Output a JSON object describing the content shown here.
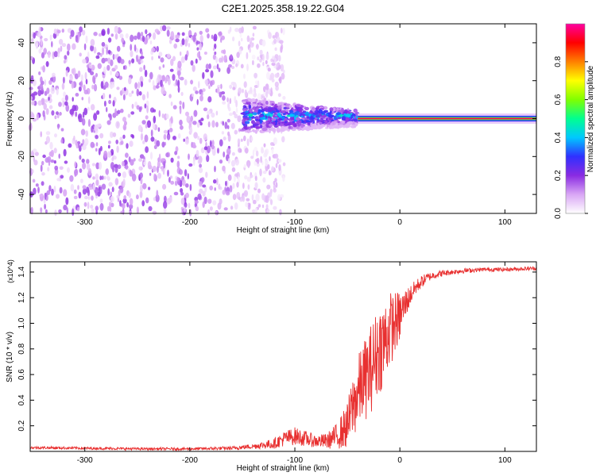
{
  "title": "C2E1.2025.358.19.22.G04",
  "chart_data": [
    {
      "type": "heatmap",
      "xlabel": "Height of straight line (km)",
      "ylabel": "Frequency (Hz)",
      "xlim": [
        -352,
        130
      ],
      "ylim": [
        -50,
        50
      ],
      "xticks": [
        -300,
        -200,
        -100,
        0,
        100
      ],
      "yticks": [
        -40,
        -20,
        0,
        20,
        40
      ],
      "colorbar": {
        "label": "Normalized spectral amplitude",
        "range": [
          0,
          1
        ],
        "ticks": [
          0.0,
          0.2,
          0.4,
          0.6,
          0.8
        ],
        "colors": [
          "#ffffff",
          "#d9a6f5",
          "#8a2be2",
          "#3030ff",
          "#00c8ff",
          "#00ff90",
          "#80ff00",
          "#ffff00",
          "#ff8000",
          "#ff0000",
          "#ff00a0"
        ]
      },
      "regions": [
        {
          "x_range": [
            -352,
            -110
          ],
          "freq_range": [
            -50,
            48
          ],
          "amplitude": 0.15,
          "note": "noise"
        },
        {
          "x_range": [
            -150,
            -40
          ],
          "freq_center": 1.5,
          "freq_halfwidth": 9,
          "amplitude": 0.35
        },
        {
          "x_range": [
            -40,
            130
          ],
          "freq_center": 0,
          "freq_halfwidth": 1.5,
          "amplitude": 0.95
        }
      ]
    },
    {
      "type": "line",
      "xlabel": "Height of straight line (km)",
      "ylabel": "SNR (10 * v/v)",
      "y_multiplier": "(x10^4)",
      "xlim": [
        -352,
        130
      ],
      "ylim": [
        0,
        1.48
      ],
      "xticks": [
        -300,
        -200,
        -100,
        0,
        100
      ],
      "yticks": [
        0.2,
        0.4,
        0.6,
        0.8,
        1.0,
        1.2,
        1.4
      ],
      "series": [
        {
          "color": "#e83030",
          "x": [
            -352,
            -300,
            -250,
            -200,
            -160,
            -140,
            -120,
            -110,
            -100,
            -90,
            -80,
            -70,
            -60,
            -50,
            -45,
            -40,
            -35,
            -30,
            -25,
            -20,
            -15,
            -10,
            -5,
            0,
            5,
            10,
            15,
            20,
            25,
            30,
            40,
            50,
            60,
            80,
            100,
            130
          ],
          "y": [
            0.03,
            0.025,
            0.02,
            0.02,
            0.025,
            0.04,
            0.06,
            0.1,
            0.12,
            0.1,
            0.08,
            0.08,
            0.12,
            0.2,
            0.35,
            0.45,
            0.55,
            0.6,
            0.7,
            0.8,
            0.85,
            0.95,
            1.0,
            1.05,
            1.15,
            1.22,
            1.28,
            1.32,
            1.35,
            1.37,
            1.39,
            1.4,
            1.41,
            1.42,
            1.42,
            1.43
          ],
          "noise": [
            0.01,
            0.01,
            0.01,
            0.01,
            0.015,
            0.02,
            0.04,
            0.06,
            0.07,
            0.06,
            0.05,
            0.06,
            0.1,
            0.18,
            0.25,
            0.3,
            0.3,
            0.35,
            0.35,
            0.35,
            0.35,
            0.3,
            0.25,
            0.2,
            0.12,
            0.08,
            0.06,
            0.05,
            0.04,
            0.03,
            0.025,
            0.02,
            0.02,
            0.015,
            0.015,
            0.015
          ]
        }
      ]
    }
  ]
}
